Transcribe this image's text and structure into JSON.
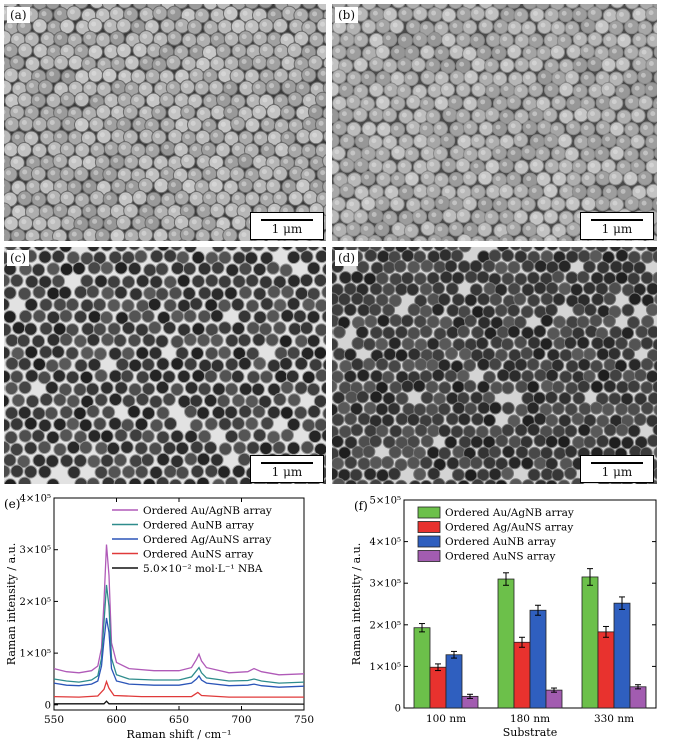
{
  "figure": {
    "panels": [
      {
        "label": "(a)",
        "scale": "1 μm",
        "style": "gray-spheres-dense"
      },
      {
        "label": "(b)",
        "scale": "1 μm",
        "style": "gray-spheres-light"
      },
      {
        "label": "(c)",
        "scale": "1 μm",
        "style": "dark-holes"
      },
      {
        "label": "(d)",
        "scale": "1 μm",
        "style": "dark-holes-dense"
      }
    ],
    "chart_labels": {
      "e": "(e)",
      "f": "(f)"
    }
  },
  "chart_data": [
    {
      "type": "line",
      "xlabel": "Raman shift / cm⁻¹",
      "ylabel": "Raman intensity / a.u.",
      "xlim": [
        550,
        750
      ],
      "ylim": [
        -10000,
        400000
      ],
      "xticks": [
        "550",
        "600",
        "650",
        "700",
        "750"
      ],
      "yticks": [
        "0",
        "1×10⁵",
        "2×10⁵",
        "3×10⁵",
        "4×10⁵"
      ],
      "ytick_values": [
        0,
        100000,
        200000,
        300000,
        400000
      ],
      "legend_position": "top-right",
      "series": [
        {
          "name": "Ordered Au/AgNB array",
          "color": "#b05ab8",
          "points": [
            [
              550,
              70000
            ],
            [
              560,
              64000
            ],
            [
              570,
              62000
            ],
            [
              580,
              66000
            ],
            [
              585,
              75000
            ],
            [
              588,
              110000
            ],
            [
              590,
              200000
            ],
            [
              592,
              310000
            ],
            [
              594,
              250000
            ],
            [
              596,
              120000
            ],
            [
              600,
              82000
            ],
            [
              610,
              70000
            ],
            [
              630,
              66000
            ],
            [
              650,
              66000
            ],
            [
              660,
              72000
            ],
            [
              664,
              88000
            ],
            [
              666,
              98000
            ],
            [
              668,
              85000
            ],
            [
              672,
              72000
            ],
            [
              690,
              62000
            ],
            [
              705,
              64000
            ],
            [
              710,
              70000
            ],
            [
              716,
              64000
            ],
            [
              730,
              58000
            ],
            [
              750,
              60000
            ]
          ]
        },
        {
          "name": "Ordered AuNB array",
          "color": "#2e8c8c",
          "points": [
            [
              550,
              50000
            ],
            [
              560,
              46000
            ],
            [
              570,
              44000
            ],
            [
              580,
              48000
            ],
            [
              585,
              56000
            ],
            [
              588,
              90000
            ],
            [
              590,
              160000
            ],
            [
              592,
              232000
            ],
            [
              594,
              190000
            ],
            [
              596,
              90000
            ],
            [
              600,
              58000
            ],
            [
              610,
              50000
            ],
            [
              630,
              48000
            ],
            [
              650,
              48000
            ],
            [
              660,
              54000
            ],
            [
              664,
              66000
            ],
            [
              666,
              72000
            ],
            [
              668,
              62000
            ],
            [
              672,
              52000
            ],
            [
              690,
              46000
            ],
            [
              705,
              47000
            ],
            [
              710,
              50000
            ],
            [
              716,
              46000
            ],
            [
              730,
              42000
            ],
            [
              750,
              44000
            ]
          ]
        },
        {
          "name": "Ordered Ag/AuNS array",
          "color": "#2b55b8",
          "points": [
            [
              550,
              42000
            ],
            [
              560,
              38000
            ],
            [
              570,
              37000
            ],
            [
              580,
              40000
            ],
            [
              585,
              46000
            ],
            [
              588,
              75000
            ],
            [
              590,
              125000
            ],
            [
              592,
              168000
            ],
            [
              594,
              140000
            ],
            [
              596,
              70000
            ],
            [
              600,
              46000
            ],
            [
              610,
              40000
            ],
            [
              630,
              38000
            ],
            [
              650,
              38000
            ],
            [
              660,
              42000
            ],
            [
              664,
              50000
            ],
            [
              666,
              56000
            ],
            [
              668,
              48000
            ],
            [
              672,
              42000
            ],
            [
              690,
              37000
            ],
            [
              705,
              38000
            ],
            [
              710,
              40000
            ],
            [
              716,
              37000
            ],
            [
              730,
              34000
            ],
            [
              750,
              36000
            ]
          ]
        },
        {
          "name": "Ordered AuNS array",
          "color": "#e03a3a",
          "points": [
            [
              550,
              16000
            ],
            [
              570,
              15000
            ],
            [
              585,
              17000
            ],
            [
              590,
              30000
            ],
            [
              592,
              45000
            ],
            [
              594,
              32000
            ],
            [
              598,
              18000
            ],
            [
              620,
              16000
            ],
            [
              660,
              16000
            ],
            [
              665,
              24000
            ],
            [
              668,
              18000
            ],
            [
              690,
              15000
            ],
            [
              750,
              15000
            ]
          ]
        },
        {
          "name": "5.0×10⁻² mol·L⁻¹ NBA",
          "color": "#111111",
          "points": [
            [
              550,
              2000
            ],
            [
              590,
              2000
            ],
            [
              592,
              7000
            ],
            [
              594,
              2000
            ],
            [
              750,
              1500
            ]
          ]
        }
      ]
    },
    {
      "type": "bar",
      "xlabel": "Substrate",
      "ylabel": "Raman intensity / a.u.",
      "ylim": [
        0,
        500000
      ],
      "yticks": [
        "0",
        "1×10⁵",
        "2×10⁵",
        "3×10⁵",
        "4×10⁵",
        "5×10⁵"
      ],
      "ytick_values": [
        0,
        100000,
        200000,
        300000,
        400000,
        500000
      ],
      "categories": [
        "100 nm",
        "180 nm",
        "330 nm"
      ],
      "legend_position": "top-left",
      "series": [
        {
          "name": "Ordered Au/AgNB array",
          "color": "#6cc04a",
          "values": [
            193000,
            310000,
            315000
          ],
          "errors": [
            10000,
            15000,
            20000
          ]
        },
        {
          "name": "Ordered Ag/AuNS array",
          "color": "#e8322e",
          "values": [
            98000,
            158000,
            183000
          ],
          "errors": [
            8000,
            12000,
            13000
          ]
        },
        {
          "name": "Ordered AuNB array",
          "color": "#2f5fbf",
          "values": [
            128000,
            235000,
            252000
          ],
          "errors": [
            8000,
            12000,
            15000
          ]
        },
        {
          "name": "Ordered AuNS array",
          "color": "#a25cb0",
          "values": [
            28000,
            43000,
            51000
          ],
          "errors": [
            5000,
            5000,
            5000
          ]
        }
      ]
    }
  ]
}
